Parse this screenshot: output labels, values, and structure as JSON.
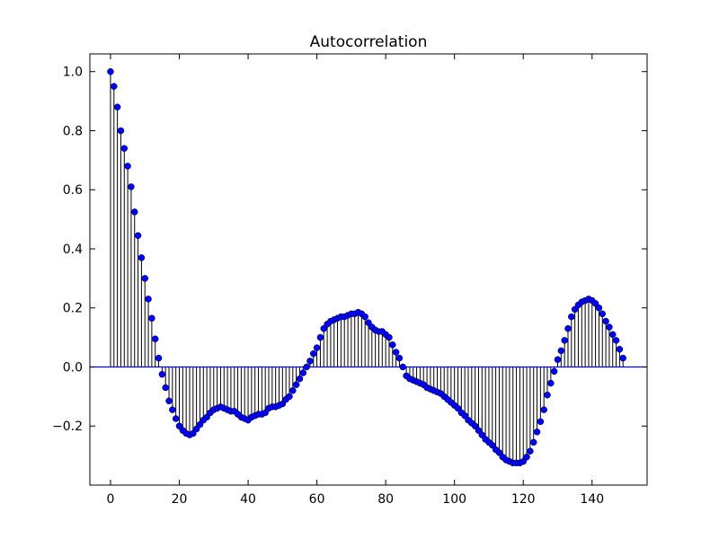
{
  "chart_data": {
    "type": "stem",
    "title": "Autocorrelation",
    "xlabel": "",
    "ylabel": "",
    "xlim": [
      -6,
      156
    ],
    "ylim": [
      -0.4,
      1.06
    ],
    "xticks": [
      0,
      20,
      40,
      60,
      80,
      100,
      120,
      140
    ],
    "xtick_labels": [
      "0",
      "20",
      "40",
      "60",
      "80",
      "100",
      "120",
      "140"
    ],
    "yticks": [
      -0.2,
      0.0,
      0.2,
      0.4,
      0.6,
      0.8,
      1.0
    ],
    "ytick_labels": [
      "−0.2",
      "0.0",
      "0.2",
      "0.4",
      "0.6",
      "0.8",
      "1.0"
    ],
    "grid": false,
    "baseline": 0,
    "marker_color": "#0000ff",
    "stem_color": "#000000",
    "baseline_color": "#0000ff",
    "x": [
      0,
      1,
      2,
      3,
      4,
      5,
      6,
      7,
      8,
      9,
      10,
      11,
      12,
      13,
      14,
      15,
      16,
      17,
      18,
      19,
      20,
      21,
      22,
      23,
      24,
      25,
      26,
      27,
      28,
      29,
      30,
      31,
      32,
      33,
      34,
      35,
      36,
      37,
      38,
      39,
      40,
      41,
      42,
      43,
      44,
      45,
      46,
      47,
      48,
      49,
      50,
      51,
      52,
      53,
      54,
      55,
      56,
      57,
      58,
      59,
      60,
      61,
      62,
      63,
      64,
      65,
      66,
      67,
      68,
      69,
      70,
      71,
      72,
      73,
      74,
      75,
      76,
      77,
      78,
      79,
      80,
      81,
      82,
      83,
      84,
      85,
      86,
      87,
      88,
      89,
      90,
      91,
      92,
      93,
      94,
      95,
      96,
      97,
      98,
      99,
      100,
      101,
      102,
      103,
      104,
      105,
      106,
      107,
      108,
      109,
      110,
      111,
      112,
      113,
      114,
      115,
      116,
      117,
      118,
      119,
      120,
      121,
      122,
      123,
      124,
      125,
      126,
      127,
      128,
      129,
      130,
      131,
      132,
      133,
      134,
      135,
      136,
      137,
      138,
      139,
      140,
      141,
      142,
      143,
      144,
      145,
      146,
      147,
      148,
      149
    ],
    "values": [
      1.0,
      0.95,
      0.88,
      0.8,
      0.74,
      0.68,
      0.61,
      0.525,
      0.445,
      0.37,
      0.3,
      0.23,
      0.165,
      0.095,
      0.03,
      -0.025,
      -0.07,
      -0.115,
      -0.145,
      -0.175,
      -0.2,
      -0.215,
      -0.225,
      -0.23,
      -0.225,
      -0.21,
      -0.195,
      -0.18,
      -0.17,
      -0.155,
      -0.145,
      -0.14,
      -0.135,
      -0.14,
      -0.145,
      -0.15,
      -0.15,
      -0.16,
      -0.17,
      -0.175,
      -0.18,
      -0.17,
      -0.165,
      -0.16,
      -0.16,
      -0.155,
      -0.14,
      -0.135,
      -0.135,
      -0.13,
      -0.125,
      -0.11,
      -0.1,
      -0.08,
      -0.06,
      -0.04,
      -0.02,
      0.0,
      0.02,
      0.045,
      0.065,
      0.1,
      0.13,
      0.145,
      0.155,
      0.16,
      0.165,
      0.17,
      0.17,
      0.175,
      0.18,
      0.18,
      0.185,
      0.18,
      0.17,
      0.15,
      0.135,
      0.125,
      0.12,
      0.12,
      0.11,
      0.1,
      0.075,
      0.05,
      0.03,
      0.0,
      -0.03,
      -0.04,
      -0.045,
      -0.05,
      -0.055,
      -0.06,
      -0.07,
      -0.075,
      -0.08,
      -0.085,
      -0.09,
      -0.1,
      -0.11,
      -0.12,
      -0.13,
      -0.14,
      -0.155,
      -0.165,
      -0.18,
      -0.19,
      -0.2,
      -0.215,
      -0.23,
      -0.245,
      -0.255,
      -0.265,
      -0.28,
      -0.29,
      -0.305,
      -0.315,
      -0.32,
      -0.325,
      -0.325,
      -0.325,
      -0.32,
      -0.305,
      -0.285,
      -0.255,
      -0.22,
      -0.185,
      -0.145,
      -0.095,
      -0.055,
      -0.015,
      0.025,
      0.055,
      0.09,
      0.13,
      0.17,
      0.195,
      0.21,
      0.22,
      0.225,
      0.23,
      0.225,
      0.215,
      0.2,
      0.18,
      0.155,
      0.135,
      0.11,
      0.09,
      0.06,
      0.03
    ]
  }
}
